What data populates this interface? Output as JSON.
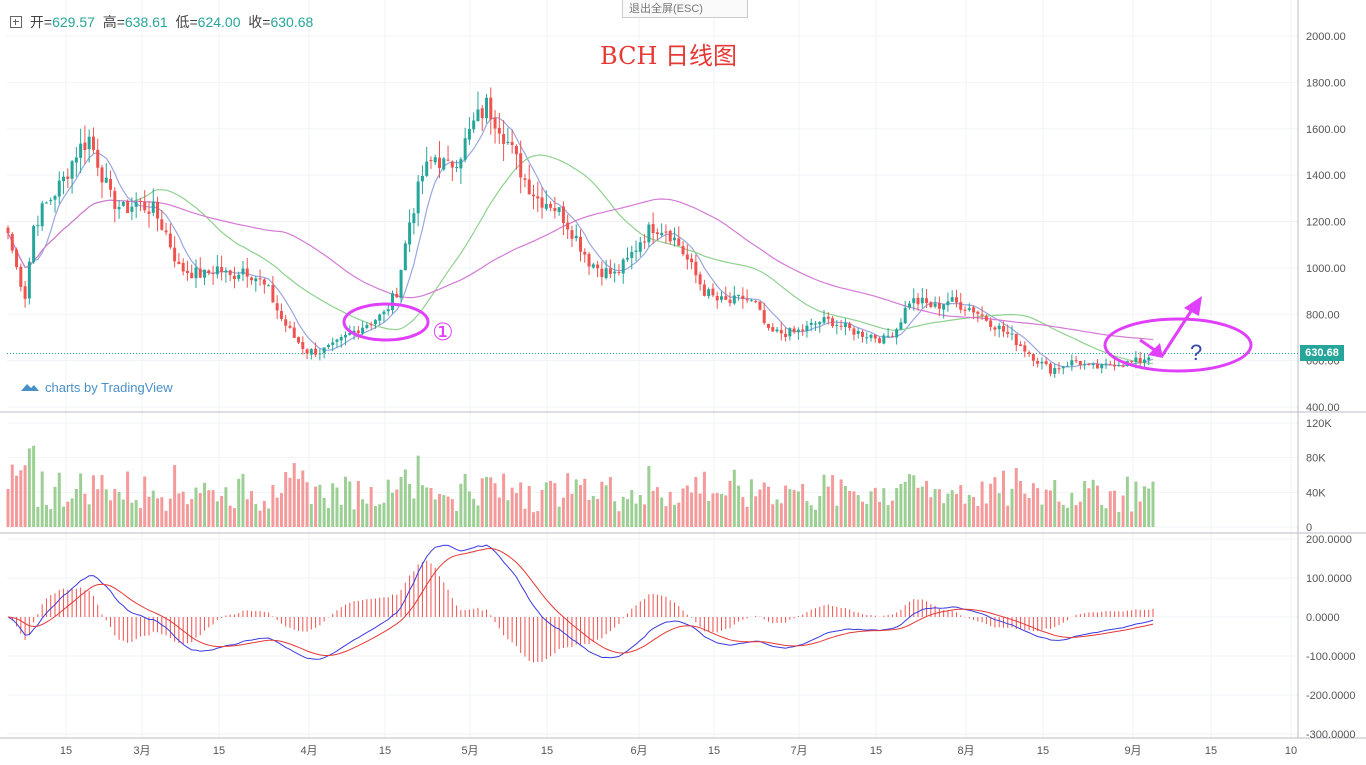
{
  "header": {
    "open_label": "开",
    "open_value": "629.57",
    "high_label": "高",
    "high_value": "638.61",
    "low_label": "低",
    "low_value": "624.00",
    "close_label": "收",
    "close_value": "630.68"
  },
  "exit_fullscreen_label": "退出全屏(ESC)",
  "annotation_title": "BCH 日线图",
  "annotation_marker": "①",
  "annotation_question": "?",
  "brand_label": "charts by TradingView",
  "last_price_label": "630.68",
  "colors": {
    "up": "#26a69a",
    "down": "#ef5350",
    "vol_up": "#9ccf94",
    "vol_down": "#f49a9a",
    "ma_fast": "#9aa6e0",
    "ma_mid": "#8fd18f",
    "ma_slow": "#d57ad5",
    "macd_dif": "#3a3ae0",
    "macd_dea": "#e53935",
    "annotation": "#e040fb"
  },
  "chart_data": [
    {
      "type": "candlestick",
      "title": "BCH 日线图",
      "ylim": [
        400,
        2100
      ],
      "y_ticks": [
        "400.00",
        "600.00",
        "800.00",
        "1000.00",
        "1200.00",
        "1400.00",
        "1600.00",
        "1800.00",
        "2000.00"
      ],
      "x_ticks": [
        "15",
        "3月",
        "15",
        "4月",
        "15",
        "5月",
        "15",
        "6月",
        "15",
        "7月",
        "15",
        "8月",
        "15",
        "9月",
        "15",
        "10"
      ],
      "last_price": 630.68,
      "close_anchors": [
        [
          0,
          1150
        ],
        [
          2,
          1000
        ],
        [
          4,
          880
        ],
        [
          6,
          1180
        ],
        [
          8,
          1250
        ],
        [
          10,
          1300
        ],
        [
          13,
          1380
        ],
        [
          16,
          1500
        ],
        [
          19,
          1560
        ],
        [
          21,
          1460
        ],
        [
          24,
          1300
        ],
        [
          27,
          1250
        ],
        [
          30,
          1280
        ],
        [
          34,
          1250
        ],
        [
          37,
          1150
        ],
        [
          40,
          1000
        ],
        [
          43,
          980
        ],
        [
          46,
          970
        ],
        [
          49,
          1000
        ],
        [
          52,
          960
        ],
        [
          55,
          1000
        ],
        [
          58,
          960
        ],
        [
          61,
          900
        ],
        [
          64,
          780
        ],
        [
          67,
          700
        ],
        [
          70,
          640
        ],
        [
          73,
          640
        ],
        [
          76,
          660
        ],
        [
          79,
          700
        ],
        [
          82,
          740
        ],
        [
          85,
          770
        ],
        [
          88,
          800
        ],
        [
          91,
          900
        ],
        [
          94,
          1200
        ],
        [
          97,
          1400
        ],
        [
          100,
          1480
        ],
        [
          103,
          1430
        ],
        [
          106,
          1500
        ],
        [
          109,
          1620
        ],
        [
          112,
          1700
        ],
        [
          115,
          1620
        ],
        [
          118,
          1500
        ],
        [
          121,
          1380
        ],
        [
          124,
          1300
        ],
        [
          127,
          1280
        ],
        [
          130,
          1220
        ],
        [
          133,
          1130
        ],
        [
          136,
          1030
        ],
        [
          139,
          990
        ],
        [
          142,
          970
        ],
        [
          145,
          1030
        ],
        [
          148,
          1120
        ],
        [
          151,
          1180
        ],
        [
          154,
          1170
        ],
        [
          157,
          1100
        ],
        [
          160,
          1000
        ],
        [
          163,
          900
        ],
        [
          166,
          860
        ],
        [
          169,
          850
        ],
        [
          172,
          870
        ],
        [
          175,
          840
        ],
        [
          178,
          720
        ],
        [
          181,
          720
        ],
        [
          184,
          720
        ],
        [
          187,
          740
        ],
        [
          190,
          770
        ],
        [
          193,
          770
        ],
        [
          196,
          740
        ],
        [
          199,
          720
        ],
        [
          202,
          710
        ],
        [
          205,
          690
        ],
        [
          208,
          740
        ],
        [
          211,
          860
        ],
        [
          214,
          850
        ],
        [
          217,
          830
        ],
        [
          220,
          860
        ],
        [
          223,
          840
        ],
        [
          226,
          820
        ],
        [
          229,
          780
        ],
        [
          232,
          740
        ],
        [
          235,
          700
        ],
        [
          238,
          650
        ],
        [
          241,
          600
        ],
        [
          244,
          560
        ],
        [
          247,
          580
        ],
        [
          250,
          600
        ],
        [
          253,
          570
        ],
        [
          256,
          570
        ],
        [
          259,
          590
        ],
        [
          262,
          590
        ],
        [
          265,
          600
        ],
        [
          268,
          630
        ]
      ],
      "series": [
        {
          "name": "",
          "role": "ma_fast"
        },
        {
          "name": "",
          "role": "ma_mid"
        },
        {
          "name": "",
          "role": "ma_slow"
        }
      ]
    },
    {
      "type": "bar",
      "ylim": [
        0,
        130000
      ],
      "y_ticks": [
        "0",
        "40K",
        "80K",
        "120K"
      ]
    },
    {
      "type": "line",
      "ylim": [
        -300,
        200
      ],
      "y_ticks": [
        "200.0000",
        "100.0000",
        "0.0000",
        "-100.0000",
        "-200.0000",
        "-300.0000"
      ],
      "series": [
        {
          "name": "",
          "role": "dif"
        },
        {
          "name": "",
          "role": "dea"
        },
        {
          "name": "",
          "role": "histogram"
        }
      ]
    }
  ]
}
